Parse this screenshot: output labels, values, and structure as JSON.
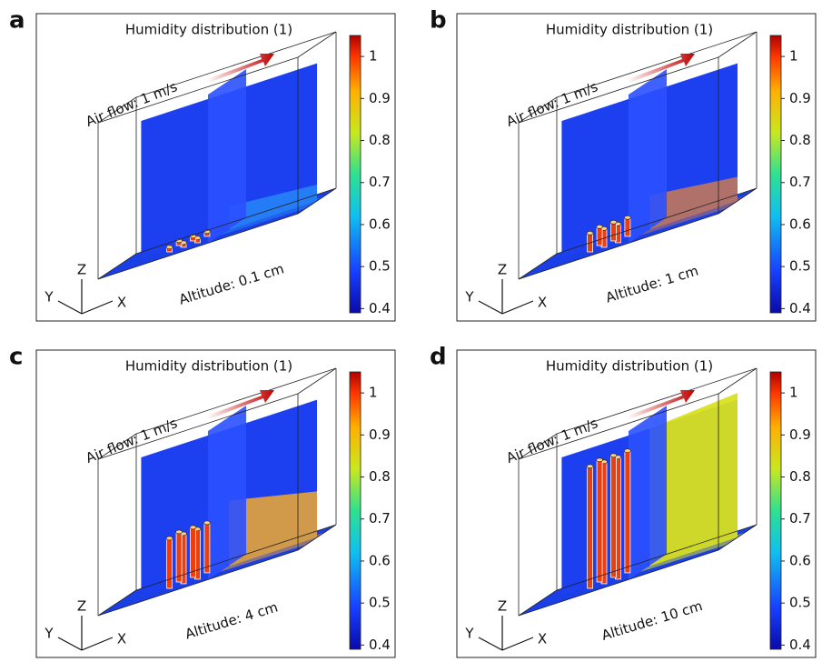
{
  "panels": [
    {
      "label": "a",
      "title": "Humidity distribution (1)",
      "air_flow": "Air flow: 1 m/s",
      "altitude": "Altitude: 0.1 cm",
      "axes": {
        "z": "Z",
        "y": "Y",
        "x": "X"
      },
      "colorbar": {
        "lim": [
          0.39,
          1.05
        ],
        "ticks": [
          0.4,
          0.5,
          0.6,
          0.7,
          0.8,
          0.9,
          1
        ]
      }
    },
    {
      "label": "b",
      "title": "Humidity distribution (1)",
      "air_flow": "Air flow: 1 m/s",
      "altitude": "Altitude: 1 cm",
      "axes": {
        "z": "Z",
        "y": "Y",
        "x": "X"
      },
      "colorbar": {
        "lim": [
          0.39,
          1.05
        ],
        "ticks": [
          0.4,
          0.5,
          0.6,
          0.7,
          0.8,
          0.9,
          1
        ]
      }
    },
    {
      "label": "c",
      "title": "Humidity distribution (1)",
      "air_flow": "Air flow: 1 m/s",
      "altitude": "Altitude: 4 cm",
      "axes": {
        "z": "Z",
        "y": "Y",
        "x": "X"
      },
      "colorbar": {
        "lim": [
          0.39,
          1.05
        ],
        "ticks": [
          0.4,
          0.5,
          0.6,
          0.7,
          0.8,
          0.9,
          1
        ]
      }
    },
    {
      "label": "d",
      "title": "Humidity distribution (1)",
      "air_flow": "Air flow: 1 m/s",
      "altitude": "Altitude: 10 cm",
      "axes": {
        "z": "Z",
        "y": "Y",
        "x": "X"
      },
      "colorbar": {
        "lim": [
          0.39,
          1.05
        ],
        "ticks": [
          0.4,
          0.5,
          0.6,
          0.7,
          0.8,
          0.9,
          1
        ]
      }
    }
  ]
}
